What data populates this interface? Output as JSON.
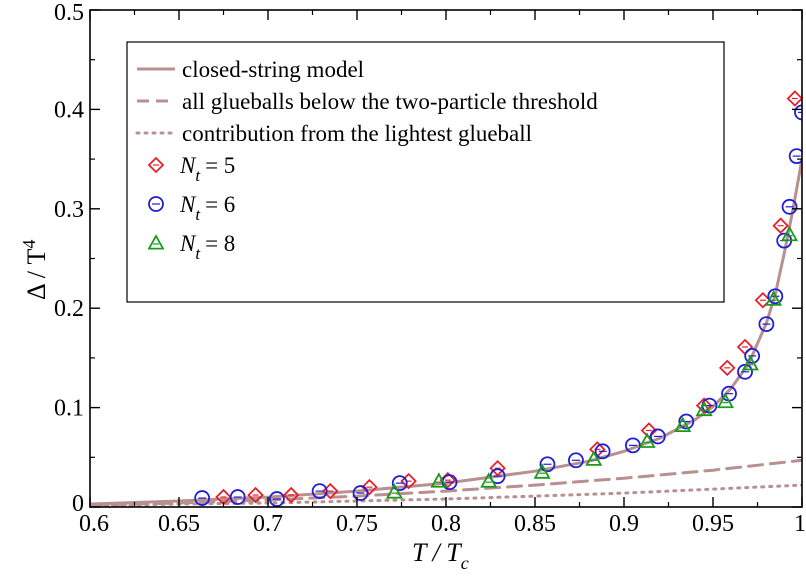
{
  "chart_data": {
    "type": "scatter",
    "xlabel": {
      "main": "T / T",
      "sub": "c"
    },
    "ylabel": {
      "main": "Δ / T",
      "sup": "4"
    },
    "xlim": [
      0.6,
      1.0
    ],
    "ylim": [
      0,
      0.5
    ],
    "x_ticks": [
      "0.6",
      "0.65",
      "0.7",
      "0.75",
      "0.8",
      "0.85",
      "0.9",
      "0.95",
      "1"
    ],
    "y_ticks": [
      "0",
      "0.1",
      "0.2",
      "0.3",
      "0.4",
      "0.5"
    ],
    "grid": false,
    "legend_position": "top-left",
    "colors": {
      "closed_string": "#b89090",
      "nt5": "#e8202a",
      "nt6": "#1f1fd6",
      "nt8": "#1a9a1a"
    },
    "lines": [
      {
        "name": "closed-string model",
        "style": "solid",
        "x": [
          0.6,
          0.65,
          0.7,
          0.75,
          0.8,
          0.85,
          0.88,
          0.9,
          0.92,
          0.94,
          0.95,
          0.96,
          0.97,
          0.98,
          0.985,
          0.99,
          0.995,
          1.0
        ],
        "y": [
          0.003,
          0.006,
          0.01,
          0.016,
          0.024,
          0.036,
          0.046,
          0.056,
          0.069,
          0.088,
          0.101,
          0.119,
          0.144,
          0.185,
          0.214,
          0.255,
          0.3,
          0.35
        ]
      },
      {
        "name": "all glueballs below the two-particle threshold",
        "style": "dashed",
        "x": [
          0.6,
          0.65,
          0.7,
          0.75,
          0.8,
          0.85,
          0.9,
          0.95,
          1.0
        ],
        "y": [
          0.002,
          0.004,
          0.007,
          0.011,
          0.016,
          0.022,
          0.029,
          0.037,
          0.047
        ]
      },
      {
        "name": "contribution from the lightest glueball",
        "style": "dotted",
        "x": [
          0.6,
          0.65,
          0.7,
          0.75,
          0.8,
          0.85,
          0.9,
          0.95,
          1.0
        ],
        "y": [
          0.001,
          0.003,
          0.004,
          0.006,
          0.008,
          0.011,
          0.014,
          0.018,
          0.022
        ]
      }
    ],
    "series": [
      {
        "name": "N",
        "sub": "t",
        "value": "= 5",
        "marker": "diamond",
        "x": [
          0.675,
          0.693,
          0.713,
          0.735,
          0.757,
          0.779,
          0.801,
          0.829,
          0.885,
          0.914,
          0.945,
          0.958,
          0.968,
          0.978,
          0.988,
          0.996
        ],
        "y": [
          0.01,
          0.012,
          0.012,
          0.016,
          0.02,
          0.026,
          0.027,
          0.039,
          0.058,
          0.077,
          0.102,
          0.14,
          0.161,
          0.208,
          0.283,
          0.411
        ]
      },
      {
        "name": "N",
        "sub": "t",
        "value": "= 6",
        "marker": "circle",
        "x": [
          0.663,
          0.683,
          0.705,
          0.729,
          0.752,
          0.774,
          0.802,
          0.829,
          0.857,
          0.873,
          0.888,
          0.905,
          0.919,
          0.935,
          0.948,
          0.959,
          0.968,
          0.972,
          0.98,
          0.985,
          0.99,
          0.993,
          0.997,
          1.0
        ],
        "y": [
          0.009,
          0.01,
          0.008,
          0.016,
          0.014,
          0.024,
          0.025,
          0.031,
          0.043,
          0.047,
          0.056,
          0.062,
          0.071,
          0.086,
          0.102,
          0.114,
          0.136,
          0.152,
          0.184,
          0.212,
          0.268,
          0.302,
          0.353,
          0.397
        ]
      },
      {
        "name": "N",
        "sub": "t",
        "value": "= 8",
        "marker": "triangle",
        "x": [
          0.771,
          0.796,
          0.824,
          0.854,
          0.883,
          0.913,
          0.933,
          0.945,
          0.957,
          0.971,
          0.984,
          0.993
        ],
        "y": [
          0.015,
          0.026,
          0.026,
          0.035,
          0.048,
          0.066,
          0.082,
          0.098,
          0.106,
          0.144,
          0.209,
          0.274
        ]
      }
    ]
  }
}
